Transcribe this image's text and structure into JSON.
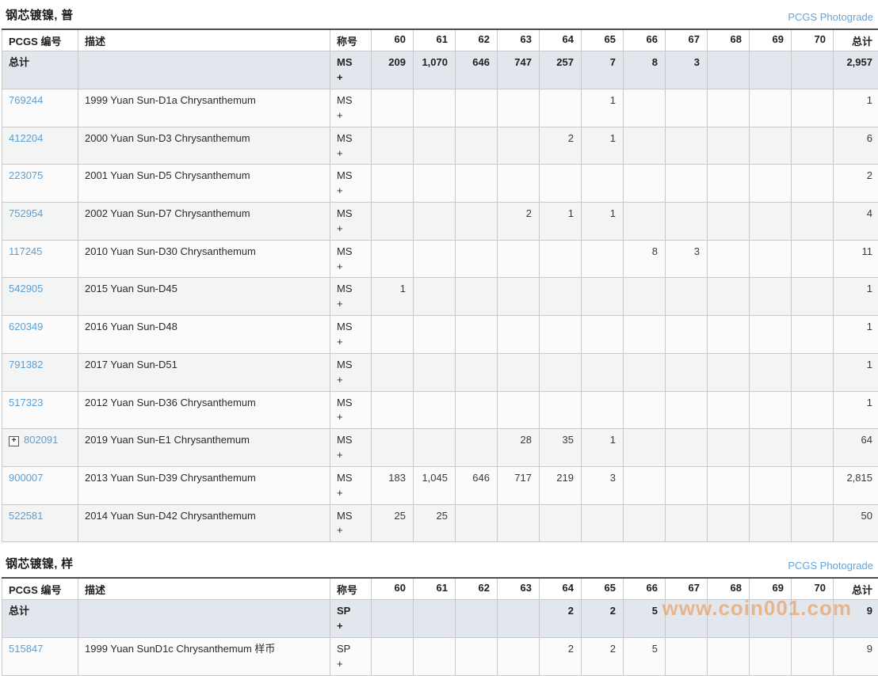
{
  "header": {
    "number": "PCGS 编号",
    "description": "描述",
    "designation": "称号",
    "total": "总计"
  },
  "grade_columns": [
    "60",
    "61",
    "62",
    "63",
    "64",
    "65",
    "66",
    "67",
    "68",
    "69",
    "70"
  ],
  "expand_icon_glyph": "+",
  "watermark": "www.coin001.com",
  "colors": {
    "link_blue": "#5b9fd4",
    "totals_row_bg": "#e1e7ec",
    "watermark_orange": "#ee8c3e"
  },
  "sections": [
    {
      "title": "钢芯镀镍, 普",
      "photograde_label": "PCGS Photograde",
      "totals": {
        "label": "总计",
        "designation": "MS +",
        "values": [
          "209",
          "1,070",
          "646",
          "747",
          "257",
          "7",
          "8",
          "3",
          "",
          "",
          ""
        ],
        "total": "2,957"
      },
      "rows": [
        {
          "id": "769244",
          "expandable": false,
          "description": "1999 Yuan Sun-D1a Chrysanthemum",
          "designation": "MS +",
          "values": [
            "",
            "",
            "",
            "",
            "",
            "1",
            "",
            "",
            "",
            "",
            ""
          ],
          "total": "1"
        },
        {
          "id": "412204",
          "expandable": false,
          "description": "2000 Yuan Sun-D3 Chrysanthemum",
          "designation": "MS +",
          "values": [
            "",
            "",
            "",
            "",
            "2",
            "1",
            "",
            "",
            "",
            "",
            ""
          ],
          "total": "6"
        },
        {
          "id": "223075",
          "expandable": false,
          "description": "2001 Yuan Sun-D5 Chrysanthemum",
          "designation": "MS +",
          "values": [
            "",
            "",
            "",
            "",
            "",
            "",
            "",
            "",
            "",
            "",
            ""
          ],
          "total": "2"
        },
        {
          "id": "752954",
          "expandable": false,
          "description": "2002 Yuan Sun-D7 Chrysanthemum",
          "designation": "MS +",
          "values": [
            "",
            "",
            "",
            "2",
            "1",
            "1",
            "",
            "",
            "",
            "",
            ""
          ],
          "total": "4"
        },
        {
          "id": "117245",
          "expandable": false,
          "description": "2010 Yuan Sun-D30 Chrysanthemum",
          "designation": "MS +",
          "values": [
            "",
            "",
            "",
            "",
            "",
            "",
            "8",
            "3",
            "",
            "",
            ""
          ],
          "total": "11"
        },
        {
          "id": "542905",
          "expandable": false,
          "description": "2015 Yuan Sun-D45",
          "designation": "MS +",
          "values": [
            "1",
            "",
            "",
            "",
            "",
            "",
            "",
            "",
            "",
            "",
            ""
          ],
          "total": "1"
        },
        {
          "id": "620349",
          "expandable": false,
          "description": "2016 Yuan Sun-D48",
          "designation": "MS +",
          "values": [
            "",
            "",
            "",
            "",
            "",
            "",
            "",
            "",
            "",
            "",
            ""
          ],
          "total": "1"
        },
        {
          "id": "791382",
          "expandable": false,
          "description": "2017 Yuan Sun-D51",
          "designation": "MS +",
          "values": [
            "",
            "",
            "",
            "",
            "",
            "",
            "",
            "",
            "",
            "",
            ""
          ],
          "total": "1"
        },
        {
          "id": "517323",
          "expandable": false,
          "description": "2012 Yuan Sun-D36 Chrysanthemum",
          "designation": "MS +",
          "values": [
            "",
            "",
            "",
            "",
            "",
            "",
            "",
            "",
            "",
            "",
            ""
          ],
          "total": "1"
        },
        {
          "id": "802091",
          "expandable": true,
          "description": "2019 Yuan Sun-E1 Chrysanthemum",
          "designation": "MS +",
          "values": [
            "",
            "",
            "",
            "28",
            "35",
            "1",
            "",
            "",
            "",
            "",
            ""
          ],
          "total": "64"
        },
        {
          "id": "900007",
          "expandable": false,
          "description": "2013 Yuan Sun-D39 Chrysanthemum",
          "designation": "MS +",
          "values": [
            "183",
            "1,045",
            "646",
            "717",
            "219",
            "3",
            "",
            "",
            "",
            "",
            ""
          ],
          "total": "2,815"
        },
        {
          "id": "522581",
          "expandable": false,
          "description": "2014 Yuan Sun-D42 Chrysanthemum",
          "designation": "MS +",
          "values": [
            "25",
            "25",
            "",
            "",
            "",
            "",
            "",
            "",
            "",
            "",
            ""
          ],
          "total": "50"
        }
      ]
    },
    {
      "title": "钢芯镀镍, 样",
      "photograde_label": "PCGS Photograde",
      "totals": {
        "label": "总计",
        "designation": "SP +",
        "values": [
          "",
          "",
          "",
          "",
          "2",
          "2",
          "5",
          "",
          "",
          "",
          ""
        ],
        "total": "9"
      },
      "rows": [
        {
          "id": "515847",
          "expandable": false,
          "description": "1999 Yuan SunD1c Chrysanthemum 样币",
          "designation": "SP +",
          "values": [
            "",
            "",
            "",
            "",
            "2",
            "2",
            "5",
            "",
            "",
            "",
            ""
          ],
          "total": "9"
        }
      ]
    }
  ]
}
